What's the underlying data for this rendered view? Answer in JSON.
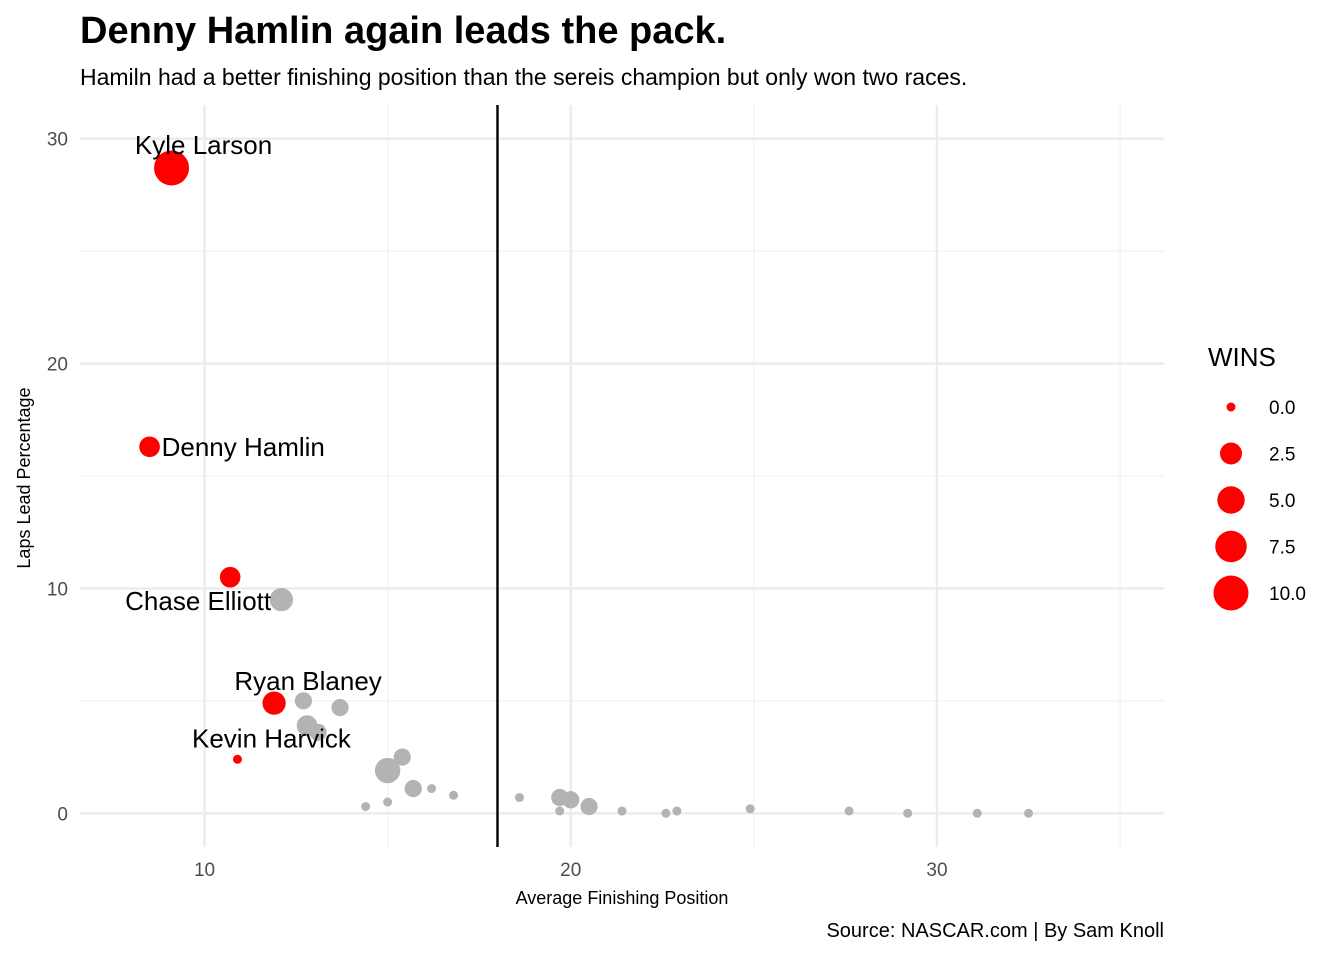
{
  "chart_data": {
    "type": "scatter",
    "title": "Denny Hamlin again leads the pack.",
    "subtitle": "Hamiln had a better finishing position than the sereis champion but only won two races.",
    "caption": "Source: NASCAR.com | By Sam Knoll",
    "xlabel": "Average Finishing Position",
    "ylabel": "Laps Lead Percentage",
    "xlim": [
      6.6,
      36.2
    ],
    "ylim": [
      -1.5,
      31.5
    ],
    "x_ticks": [
      10,
      20,
      30
    ],
    "y_ticks": [
      0,
      10,
      20,
      30
    ],
    "grid": true,
    "reference_line": {
      "orientation": "vertical",
      "x": 18
    },
    "highlight_color": "#ff0000",
    "other_color": "#b3b3b3",
    "size_legend": {
      "title": "WINS",
      "placement": "right",
      "values": [
        0.0,
        2.5,
        5.0,
        7.5,
        10.0
      ],
      "labels": [
        "0.0",
        "2.5",
        "5.0",
        "7.5",
        "10.0"
      ]
    },
    "labeled_points": [
      {
        "name": "Kyle Larson",
        "x": 9.1,
        "y": 28.7,
        "wins": 10
      },
      {
        "name": "Denny Hamlin",
        "x": 8.5,
        "y": 16.3,
        "wins": 2
      },
      {
        "name": "Chase Elliott",
        "x": 10.7,
        "y": 10.5,
        "wins": 2
      },
      {
        "name": "Ryan Blaney",
        "x": 11.9,
        "y": 4.9,
        "wins": 3
      },
      {
        "name": "Kevin Harvick",
        "x": 10.9,
        "y": 2.4,
        "wins": 0
      }
    ],
    "other_points": [
      {
        "x": 12.1,
        "y": 9.5,
        "wins": 3
      },
      {
        "x": 12.7,
        "y": 5.0,
        "wins": 1
      },
      {
        "x": 13.7,
        "y": 4.7,
        "wins": 1
      },
      {
        "x": 12.8,
        "y": 3.9,
        "wins": 2
      },
      {
        "x": 13.1,
        "y": 3.6,
        "wins": 1
      },
      {
        "x": 15.4,
        "y": 2.5,
        "wins": 1
      },
      {
        "x": 15.0,
        "y": 1.9,
        "wins": 4
      },
      {
        "x": 15.7,
        "y": 1.1,
        "wins": 1
      },
      {
        "x": 16.2,
        "y": 1.1,
        "wins": 0
      },
      {
        "x": 16.8,
        "y": 0.8,
        "wins": 0
      },
      {
        "x": 14.4,
        "y": 0.3,
        "wins": 0
      },
      {
        "x": 15.0,
        "y": 0.5,
        "wins": 0
      },
      {
        "x": 18.6,
        "y": 0.7,
        "wins": 0
      },
      {
        "x": 19.7,
        "y": 0.7,
        "wins": 1
      },
      {
        "x": 20.0,
        "y": 0.6,
        "wins": 1
      },
      {
        "x": 19.7,
        "y": 0.1,
        "wins": 0
      },
      {
        "x": 20.5,
        "y": 0.3,
        "wins": 1
      },
      {
        "x": 21.4,
        "y": 0.1,
        "wins": 0
      },
      {
        "x": 22.6,
        "y": 0.0,
        "wins": 0
      },
      {
        "x": 22.9,
        "y": 0.1,
        "wins": 0
      },
      {
        "x": 24.9,
        "y": 0.2,
        "wins": 0
      },
      {
        "x": 27.6,
        "y": 0.1,
        "wins": 0
      },
      {
        "x": 29.2,
        "y": 0.0,
        "wins": 0
      },
      {
        "x": 31.1,
        "y": 0.0,
        "wins": 0
      },
      {
        "x": 32.5,
        "y": 0.0,
        "wins": 0
      }
    ]
  }
}
